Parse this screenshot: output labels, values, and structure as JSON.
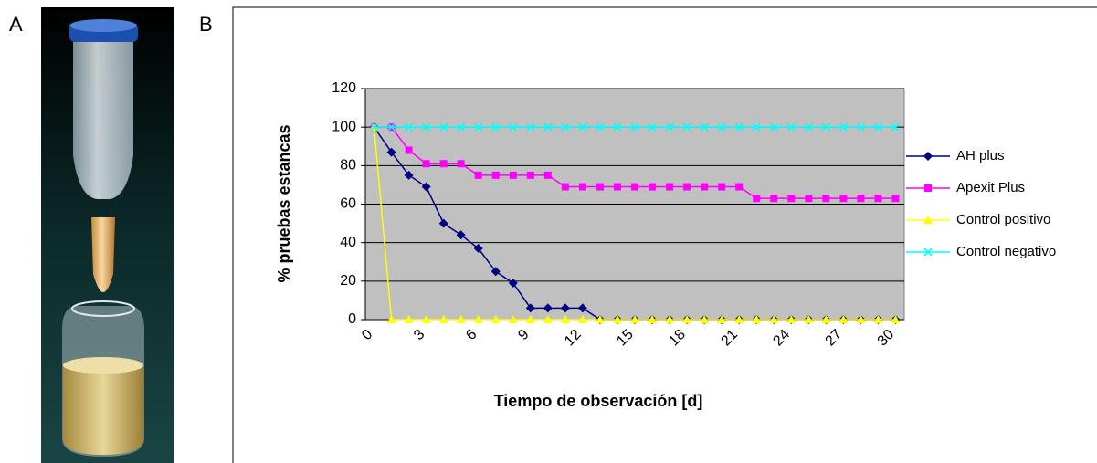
{
  "panels": {
    "left_label": "A",
    "right_label": "B"
  },
  "chart_data": {
    "type": "line",
    "x_label": "Tiempo de observación [d]",
    "y_label": "% pruebas estancas",
    "categories": [
      0,
      null,
      null,
      3,
      null,
      null,
      6,
      null,
      null,
      9,
      null,
      null,
      12,
      null,
      null,
      15,
      null,
      null,
      18,
      null,
      null,
      21,
      null,
      null,
      24,
      null,
      null,
      27,
      null,
      null,
      30
    ],
    "ylim": [
      0,
      120
    ],
    "yticks": [
      0,
      20,
      40,
      60,
      80,
      100,
      120
    ],
    "grid": true,
    "plot_background": "#c0c0c0",
    "legend": "right",
    "series": [
      {
        "name": "AH plus",
        "color": "#000080",
        "marker": "diamond",
        "values": [
          100,
          87,
          75,
          69,
          50,
          44,
          37,
          25,
          19,
          6,
          6,
          6,
          6,
          0,
          0,
          0,
          0,
          0,
          0,
          0,
          0,
          0,
          0,
          0,
          0,
          0,
          0,
          0,
          0,
          0,
          0
        ]
      },
      {
        "name": "Apexit Plus",
        "color": "#ff00ff",
        "marker": "square",
        "values": [
          100,
          100,
          88,
          81,
          81,
          81,
          75,
          75,
          75,
          75,
          75,
          69,
          69,
          69,
          69,
          69,
          69,
          69,
          69,
          69,
          69,
          69,
          63,
          63,
          63,
          63,
          63,
          63,
          63,
          63,
          63
        ]
      },
      {
        "name": "Control positivo",
        "color": "#ffff00",
        "marker": "triangle",
        "values": [
          100,
          0,
          0,
          0,
          0,
          0,
          0,
          0,
          0,
          0,
          0,
          0,
          0,
          0,
          0,
          0,
          0,
          0,
          0,
          0,
          0,
          0,
          0,
          0,
          0,
          0,
          0,
          0,
          0,
          0,
          0
        ]
      },
      {
        "name": "Control negativo",
        "color": "#00ffff",
        "marker": "x",
        "values": [
          100,
          100,
          100,
          100,
          100,
          100,
          100,
          100,
          100,
          100,
          100,
          100,
          100,
          100,
          100,
          100,
          100,
          100,
          100,
          100,
          100,
          100,
          100,
          100,
          100,
          100,
          100,
          100,
          100,
          100,
          100
        ]
      }
    ]
  }
}
